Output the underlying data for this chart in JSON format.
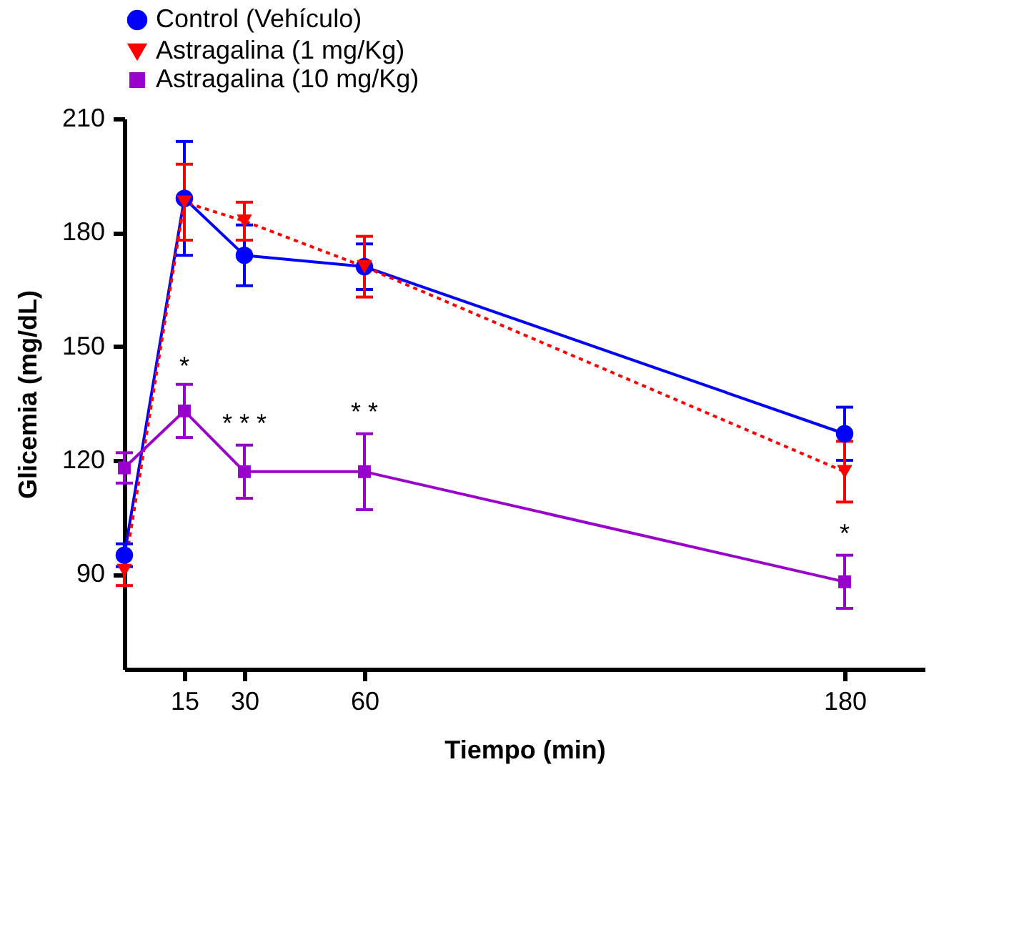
{
  "chart_data": {
    "type": "line",
    "xlabel": "Tiempo (min)",
    "ylabel": "Glicemia (mg/dL)",
    "x": [
      0,
      15,
      30,
      60,
      180
    ],
    "xlim": [
      0,
      200
    ],
    "xticks": [
      15,
      30,
      60,
      180
    ],
    "ylim": [
      65,
      210
    ],
    "yticks": [
      90,
      120,
      150,
      180,
      210
    ],
    "grid": false,
    "legend": "top",
    "series": [
      {
        "name": "Control (Vehículo)",
        "color": "#0000ff",
        "marker": "circle",
        "line_style": "solid",
        "values": [
          95,
          189,
          174,
          171,
          127
        ],
        "errors": [
          3,
          15,
          8,
          6,
          7
        ]
      },
      {
        "name": "Astragalina (1 mg/Kg)",
        "color": "#ff0000",
        "marker": "triangle",
        "line_style": "dotted",
        "values": [
          91,
          188,
          183,
          171,
          117
        ],
        "errors": [
          4,
          10,
          5,
          8,
          8
        ]
      },
      {
        "name": "Astragalina (10 mg/Kg)",
        "color": "#9900cc",
        "marker": "square",
        "line_style": "solid",
        "values": [
          118,
          133,
          117,
          117,
          88
        ],
        "errors": [
          4,
          7,
          7,
          10,
          7
        ]
      }
    ],
    "annotations": [
      {
        "text": "*",
        "x": 15,
        "y": 141
      },
      {
        "text": "* * *",
        "x": 30,
        "y": 126
      },
      {
        "text": "* *",
        "x": 60,
        "y": 129
      },
      {
        "text": "*",
        "x": 180,
        "y": 97
      }
    ]
  }
}
